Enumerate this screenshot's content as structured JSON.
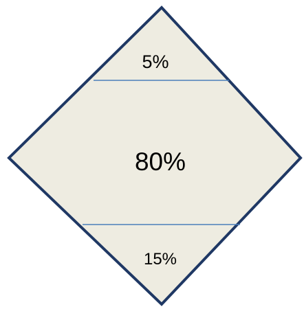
{
  "diagram": {
    "segments": {
      "top": "5%",
      "middle": "80%",
      "bottom": "15%"
    },
    "colors": {
      "fill": "#EEECE1",
      "border": "#1F3864",
      "divider": "#4A7EBB",
      "text": "#000000"
    }
  }
}
